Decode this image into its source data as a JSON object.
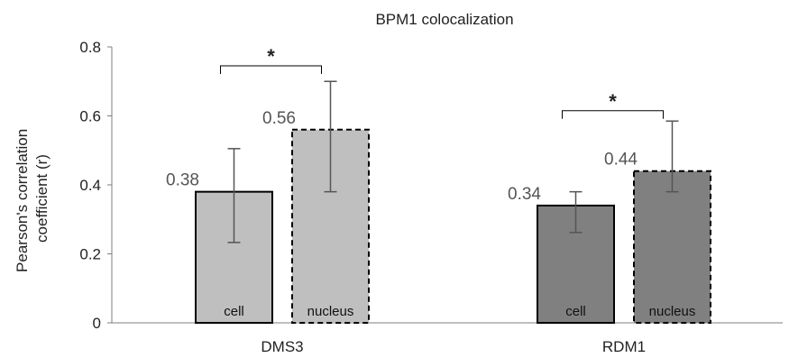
{
  "chart_data": {
    "type": "bar",
    "title": "BPM1 colocalization",
    "ylabel": "Pearson's correlation coefficient (r)",
    "ylabel_lines": [
      "Pearson's correlation",
      "coefficient (r)"
    ],
    "xlabel": "",
    "ylim": [
      0,
      0.8
    ],
    "yticks": [
      0,
      0.2,
      0.4,
      0.6,
      0.8
    ],
    "ytick_labels": [
      "0",
      "0.2",
      "0.4",
      "0.6",
      "0.8"
    ],
    "grid": false,
    "categories": [
      "DMS3",
      "RDM1"
    ],
    "series": [
      {
        "category_index": 0,
        "bar_text": "cell",
        "value": 0.38,
        "value_label": "0.38",
        "error_low": 0.233,
        "error_high": 0.505,
        "fill": "#bfbfbf",
        "border": "solid"
      },
      {
        "category_index": 0,
        "bar_text": "nucleus",
        "value": 0.56,
        "value_label": "0.56",
        "error_low": 0.38,
        "error_high": 0.7,
        "fill": "#bfbfbf",
        "border": "dashed"
      },
      {
        "category_index": 1,
        "bar_text": "cell",
        "value": 0.34,
        "value_label": "0.34",
        "error_low": 0.262,
        "error_high": 0.38,
        "fill": "#808080",
        "border": "solid"
      },
      {
        "category_index": 1,
        "bar_text": "nucleus",
        "value": 0.44,
        "value_label": "0.44",
        "error_low": 0.38,
        "error_high": 0.585,
        "fill": "#808080",
        "border": "dashed"
      }
    ],
    "significance": [
      {
        "category_index": 0,
        "y": 0.745,
        "label": "*"
      },
      {
        "category_index": 1,
        "y": 0.615,
        "label": "*"
      }
    ]
  }
}
